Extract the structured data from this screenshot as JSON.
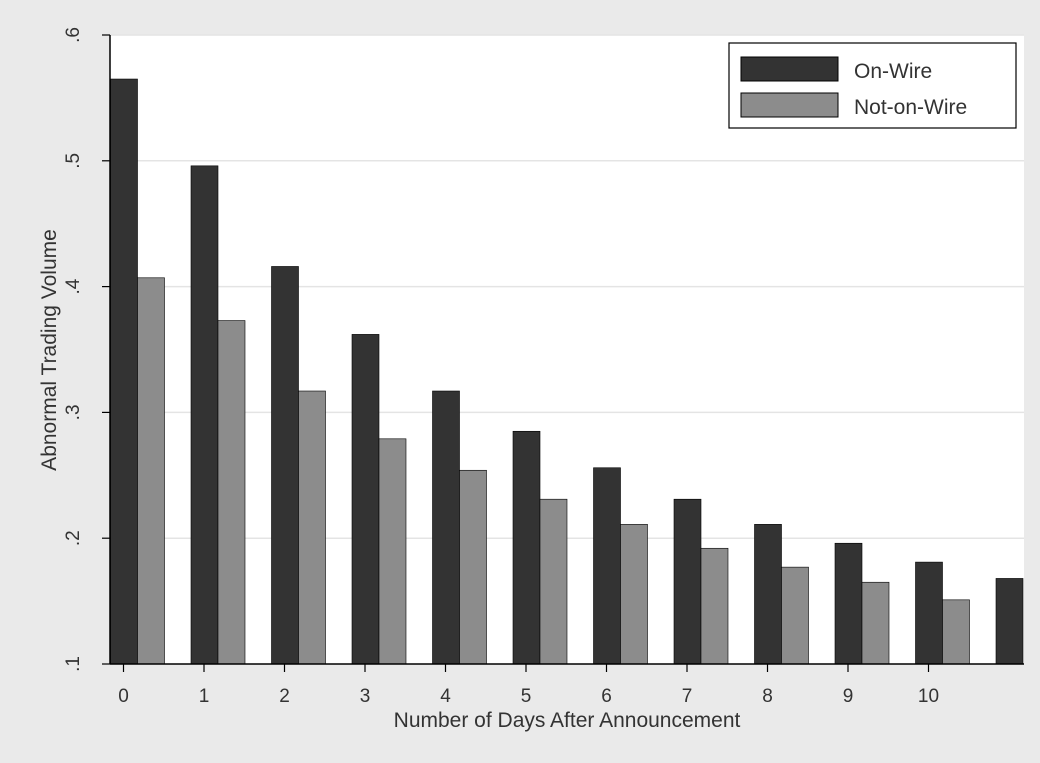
{
  "chart_data": {
    "type": "bar",
    "xlabel": "Number of Days After Announcement",
    "ylabel": "Abnormal Trading Volume",
    "ylim": [
      0.1,
      0.6
    ],
    "yticks": [
      ".1",
      ".2",
      ".3",
      ".4",
      ".5",
      ".6"
    ],
    "ytick_values": [
      0.1,
      0.2,
      0.3,
      0.4,
      0.5,
      0.6
    ],
    "categories": [
      "0",
      "1",
      "2",
      "3",
      "4",
      "5",
      "6",
      "7",
      "8",
      "9",
      "10",
      ""
    ],
    "series": [
      {
        "name": "On-Wire",
        "color": "#333333",
        "values": [
          0.565,
          0.496,
          0.416,
          0.362,
          0.317,
          0.285,
          0.256,
          0.231,
          0.211,
          0.196,
          0.181,
          0.168
        ]
      },
      {
        "name": "Not-on-Wire",
        "color": "#8c8c8c",
        "values": [
          0.407,
          0.373,
          0.317,
          0.279,
          0.254,
          0.231,
          0.211,
          0.192,
          0.177,
          0.165,
          0.151,
          null
        ]
      }
    ],
    "grid": true,
    "legend_position": "top-right"
  }
}
